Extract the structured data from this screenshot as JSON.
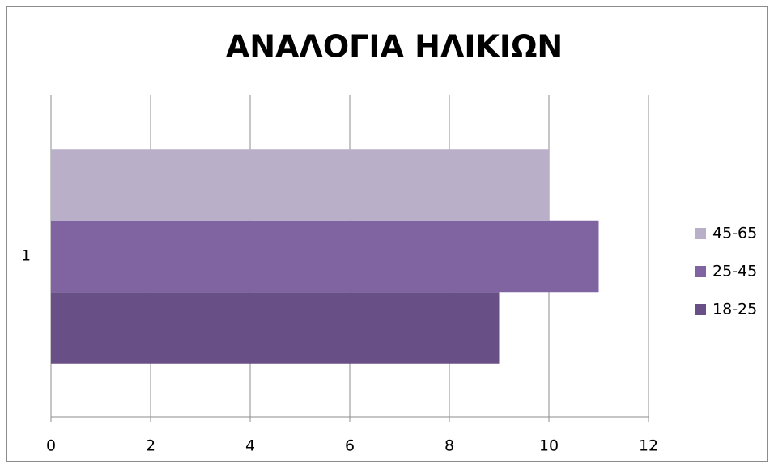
{
  "chart_data": {
    "type": "hbar",
    "title": "ΑΝΑΛΟΓΙΑ ΗΛΙΚΙΩΝ",
    "categories": [
      "1"
    ],
    "series": [
      {
        "name": "18-25",
        "color": "#684f86",
        "values": [
          9
        ]
      },
      {
        "name": "25-45",
        "color": "#8064a2",
        "values": [
          11
        ]
      },
      {
        "name": "45-65",
        "color": "#b9afc9",
        "values": [
          10
        ]
      }
    ],
    "xlim": [
      0,
      12
    ],
    "xticks": [
      0,
      2,
      4,
      6,
      8,
      10,
      12
    ],
    "grid": true,
    "legend": "right"
  }
}
